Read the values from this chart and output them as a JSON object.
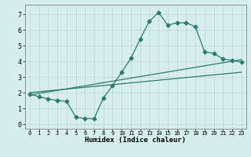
{
  "xlabel": "Humidex (Indice chaleur)",
  "ylabel": "",
  "xlim": [
    -0.5,
    23.5
  ],
  "ylim": [
    -0.3,
    7.6
  ],
  "xtick_labels": [
    "0",
    "1",
    "2",
    "3",
    "4",
    "5",
    "6",
    "7",
    "8",
    "9",
    "10",
    "11",
    "12",
    "13",
    "14",
    "15",
    "16",
    "17",
    "18",
    "19",
    "20",
    "21",
    "22",
    "23"
  ],
  "ytick_labels": [
    "0",
    "1",
    "2",
    "3",
    "4",
    "5",
    "6",
    "7"
  ],
  "background_color": "#d6efec",
  "grid_color": "#b8d8d4",
  "line_color": "#2d7a6e",
  "line1_x": [
    0,
    1,
    2,
    3,
    4,
    5,
    6,
    7,
    8,
    9,
    10,
    11,
    12,
    13,
    14,
    15,
    16,
    17,
    18,
    19,
    20,
    21,
    22,
    23
  ],
  "line1_y": [
    1.9,
    1.75,
    1.6,
    1.5,
    1.45,
    0.45,
    0.35,
    0.35,
    1.65,
    2.45,
    3.3,
    4.2,
    5.4,
    6.55,
    7.1,
    6.3,
    6.45,
    6.45,
    6.2,
    4.6,
    4.5,
    4.15,
    4.05,
    3.95
  ],
  "line2_x": [
    0,
    23
  ],
  "line2_y": [
    2.0,
    3.3
  ],
  "line3_x": [
    0,
    23
  ],
  "line3_y": [
    1.85,
    4.1
  ],
  "marker": "D",
  "markersize": 2.5
}
